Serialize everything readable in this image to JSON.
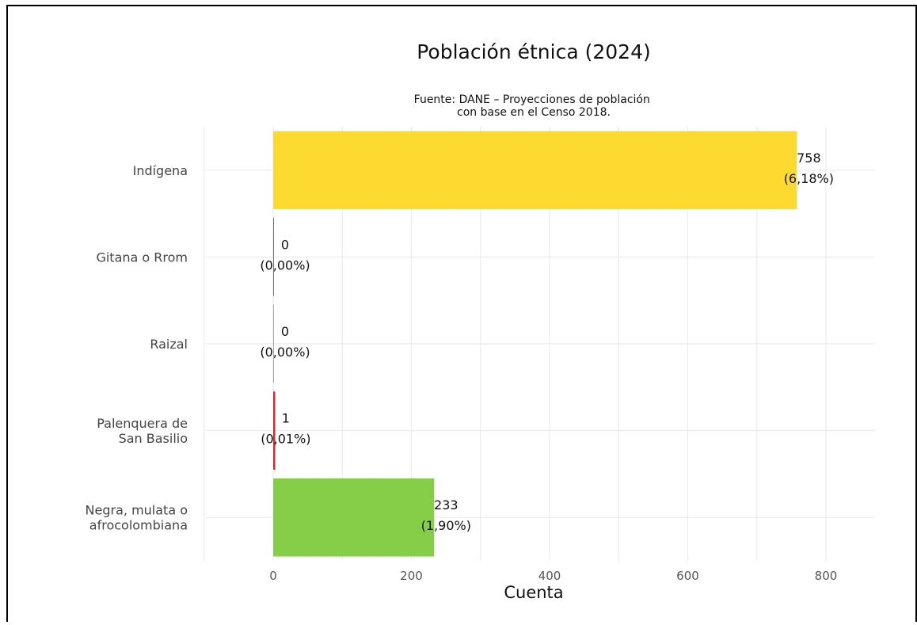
{
  "chart_data": {
    "type": "bar",
    "orientation": "horizontal",
    "title": "Población étnica (2024)",
    "subtitle": [
      "Fuente: DANE – Proyecciones de población",
      "con base en el Censo 2018."
    ],
    "xlabel": "Cuenta",
    "ylabel": "",
    "xlim": [
      -100,
      880
    ],
    "xticks": [
      0,
      200,
      400,
      600,
      800
    ],
    "grid": true,
    "legend": "none",
    "categories": [
      {
        "label": [
          "Indígena"
        ],
        "value": 758,
        "pct": "(6,18%)",
        "color": "#FDDA2F"
      },
      {
        "label": [
          "Gitana o Rrom"
        ],
        "value": 0,
        "pct": "(0,00%)",
        "color": "#2E7CF6"
      },
      {
        "label": [
          "Raizal"
        ],
        "value": 0,
        "pct": "(0,00%)",
        "color": "#F08A8A"
      },
      {
        "label": [
          "Palenquera de",
          "San Basilio"
        ],
        "value": 1,
        "pct": "(0,01%)",
        "color": "#E8202A"
      },
      {
        "label": [
          "Negra, mulata o",
          "afrocolombiana"
        ],
        "value": 233,
        "pct": "(1,90%)",
        "color": "#86CE47"
      }
    ]
  }
}
